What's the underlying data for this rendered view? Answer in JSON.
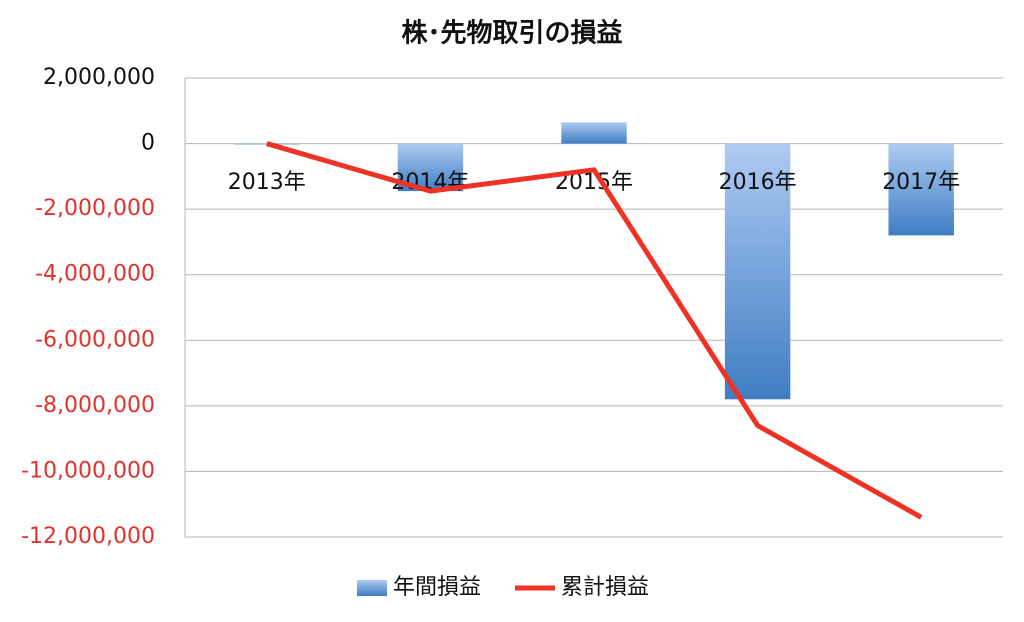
{
  "chart_data": {
    "type": "combo",
    "title": "株･先物取引の損益",
    "categories": [
      "2013年",
      "2014年",
      "2015年",
      "2016年",
      "2017年"
    ],
    "series": [
      {
        "name": "年間損益",
        "type": "bar",
        "color": "#4a86c8",
        "values": [
          0,
          -1450000,
          650000,
          -7800000,
          -2800000
        ]
      },
      {
        "name": "累計損益",
        "type": "line",
        "color": "#ee3224",
        "values": [
          0,
          -1450000,
          -800000,
          -8600000,
          -11400000
        ]
      }
    ],
    "ylim": [
      -12000000,
      2000000
    ],
    "yticks": [
      {
        "value": -12000000,
        "label": "-12,000,000"
      },
      {
        "value": -10000000,
        "label": "-10,000,000"
      },
      {
        "value": -8000000,
        "label": "-8,000,000"
      },
      {
        "value": -6000000,
        "label": "-6,000,000"
      },
      {
        "value": -4000000,
        "label": "-4,000,000"
      },
      {
        "value": -2000000,
        "label": "-2,000,000"
      },
      0,
      {
        "value": 2000000,
        "label": "2,000,000"
      }
    ],
    "negative_tick_color": "#e3322b",
    "grid": true,
    "legend": "bottom"
  }
}
